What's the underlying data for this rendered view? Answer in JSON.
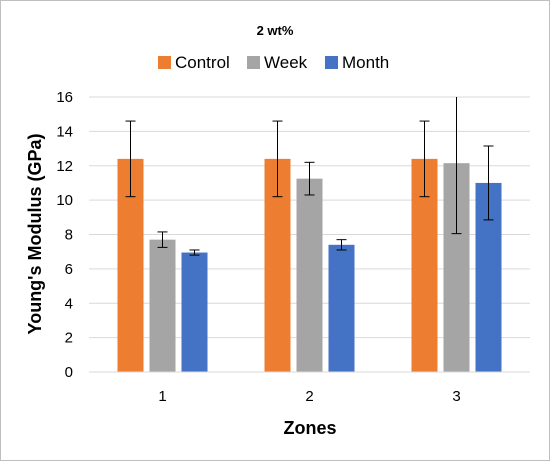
{
  "chart_data": {
    "type": "bar",
    "title": "2 wt%",
    "xlabel": "Zones",
    "ylabel": "Young's Modulus (GPa)",
    "categories": [
      "1",
      "2",
      "3"
    ],
    "ylim": [
      0,
      16
    ],
    "yticks": [
      0,
      2,
      4,
      6,
      8,
      10,
      12,
      14,
      16
    ],
    "grid": true,
    "legend_position": "top",
    "series": [
      {
        "name": "Control",
        "color": "#ED7D31",
        "values": [
          12.4,
          12.4,
          12.4
        ],
        "errors": [
          2.2,
          2.2,
          2.2
        ]
      },
      {
        "name": "Week",
        "color": "#A5A5A5",
        "values": [
          7.7,
          11.25,
          12.15
        ],
        "errors": [
          0.45,
          0.95,
          4.1
        ]
      },
      {
        "name": "Month",
        "color": "#4472C4",
        "values": [
          6.95,
          7.4,
          11.0
        ],
        "errors": [
          0.15,
          0.3,
          2.15
        ]
      }
    ]
  }
}
